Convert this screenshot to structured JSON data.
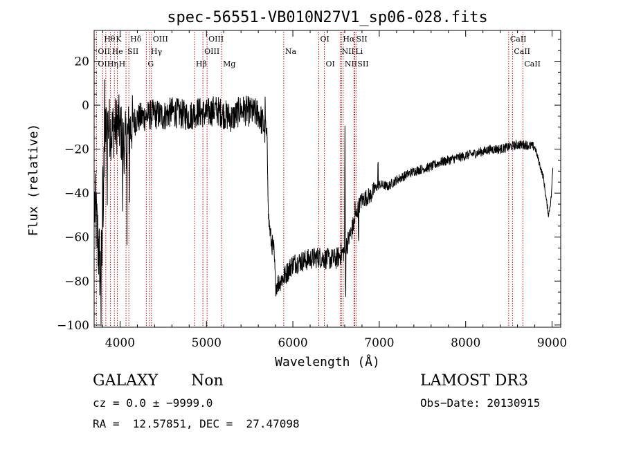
{
  "chart_data": {
    "type": "line",
    "title": "spec-56551-VB010N27V1_sp06-028.fits",
    "xlabel": "Wavelength (Å)",
    "ylabel": "Flux (relative)",
    "xlim": [
      3700,
      9100
    ],
    "ylim": [
      -101,
      34
    ],
    "xticks": [
      4000,
      5000,
      6000,
      7000,
      8000,
      9000
    ],
    "yticks": [
      -100,
      -80,
      -60,
      -40,
      -20,
      0,
      20
    ],
    "grid": false,
    "line_color": "#000000",
    "marker_color": "#cc0000",
    "spectrum_knots": [
      [
        3705,
        -45
      ],
      [
        3740,
        -60
      ],
      [
        3770,
        -75
      ],
      [
        3790,
        -70
      ],
      [
        3810,
        -40
      ],
      [
        3830,
        -12
      ],
      [
        3860,
        -8
      ],
      [
        3900,
        -12
      ],
      [
        3940,
        -10
      ],
      [
        3980,
        -8
      ],
      [
        4050,
        -18
      ],
      [
        4100,
        -12
      ],
      [
        4150,
        -8
      ],
      [
        4200,
        -6
      ],
      [
        4300,
        -5
      ],
      [
        4400,
        -4
      ],
      [
        4500,
        -5
      ],
      [
        4600,
        -3
      ],
      [
        4700,
        -4
      ],
      [
        4800,
        -5
      ],
      [
        4900,
        -3
      ],
      [
        5000,
        -4
      ],
      [
        5100,
        -2
      ],
      [
        5200,
        -4
      ],
      [
        5300,
        -6
      ],
      [
        5400,
        -2
      ],
      [
        5500,
        -3
      ],
      [
        5600,
        -4
      ],
      [
        5650,
        -8
      ],
      [
        5700,
        -15
      ],
      [
        5720,
        -52
      ],
      [
        5750,
        -62
      ],
      [
        5780,
        -66
      ],
      [
        5800,
        -82
      ],
      [
        5850,
        -80
      ],
      [
        5900,
        -78
      ],
      [
        5950,
        -75
      ],
      [
        6000,
        -72
      ],
      [
        6100,
        -71
      ],
      [
        6200,
        -70
      ],
      [
        6300,
        -69
      ],
      [
        6400,
        -70
      ],
      [
        6500,
        -70
      ],
      [
        6600,
        -66
      ],
      [
        6700,
        -55
      ],
      [
        6760,
        -46
      ],
      [
        6800,
        -43
      ],
      [
        6850,
        -42
      ],
      [
        6900,
        -41
      ],
      [
        6950,
        -38
      ],
      [
        7000,
        -36
      ],
      [
        7100,
        -37
      ],
      [
        7200,
        -34
      ],
      [
        7300,
        -32
      ],
      [
        7400,
        -30
      ],
      [
        7500,
        -29
      ],
      [
        7600,
        -28
      ],
      [
        7700,
        -26
      ],
      [
        7800,
        -25
      ],
      [
        7900,
        -24
      ],
      [
        8000,
        -23
      ],
      [
        8100,
        -22
      ],
      [
        8200,
        -21
      ],
      [
        8300,
        -20
      ],
      [
        8400,
        -20
      ],
      [
        8500,
        -19
      ],
      [
        8600,
        -18
      ],
      [
        8700,
        -18
      ],
      [
        8800,
        -19
      ],
      [
        8850,
        -26
      ],
      [
        8900,
        -33
      ],
      [
        8940,
        -45
      ],
      [
        8960,
        -50
      ],
      [
        8990,
        -42
      ],
      [
        9010,
        -28
      ]
    ],
    "line_markers": [
      {
        "label": "OII",
        "x": 3727,
        "row": 2
      },
      {
        "label": "OII",
        "x": 3727,
        "row": 3
      },
      {
        "label": "Hθ",
        "x": 3798,
        "row": 1
      },
      {
        "label": "Hη",
        "x": 3835,
        "row": 3
      },
      {
        "label": "He",
        "x": 3889,
        "row": 2
      },
      {
        "label": "K",
        "x": 3934,
        "row": 1
      },
      {
        "label": "H",
        "x": 3969,
        "row": 3
      },
      {
        "label": "SII",
        "x": 4069,
        "row": 2
      },
      {
        "label": "Hδ",
        "x": 4102,
        "row": 1
      },
      {
        "label": "G",
        "x": 4304,
        "row": 3
      },
      {
        "label": "Hγ",
        "x": 4340,
        "row": 2
      },
      {
        "label": "OIII",
        "x": 4363,
        "row": 1
      },
      {
        "label": "Hβ",
        "x": 4861,
        "row": 3
      },
      {
        "label": "OIII",
        "x": 4959,
        "row": 2
      },
      {
        "label": "OIII",
        "x": 5007,
        "row": 1
      },
      {
        "label": "Mg",
        "x": 5175,
        "row": 3
      },
      {
        "label": "Na",
        "x": 5894,
        "row": 2
      },
      {
        "label": "OI",
        "x": 6300,
        "row": 1
      },
      {
        "label": "OI",
        "x": 6364,
        "row": 3
      },
      {
        "label": "Hα",
        "x": 6563,
        "row": 1
      },
      {
        "label": "NII",
        "x": 6548,
        "row": 2
      },
      {
        "label": "NII",
        "x": 6583,
        "row": 3
      },
      {
        "label": "Li",
        "x": 6708,
        "row": 2
      },
      {
        "label": "SII",
        "x": 6716,
        "row": 1
      },
      {
        "label": "SII",
        "x": 6731,
        "row": 3
      },
      {
        "label": "CaII",
        "x": 8498,
        "row": 1
      },
      {
        "label": "CaII",
        "x": 8542,
        "row": 2
      },
      {
        "label": "CaII",
        "x": 8662,
        "row": 3
      }
    ],
    "marker_line_positions": [
      3727,
      3798,
      3835,
      3889,
      3934,
      3969,
      4069,
      4102,
      4304,
      4340,
      4363,
      4861,
      4959,
      5007,
      5175,
      5894,
      6300,
      6364,
      6548,
      6563,
      6583,
      6708,
      6716,
      6731,
      8498,
      8542,
      8662
    ]
  },
  "info": {
    "class": "GALAXY",
    "subclass": "Non",
    "survey": "LAMOST DR3",
    "cz": "cz = 0.0 ± −9999.0",
    "obs_date": "Obs−Date: 20130915",
    "radec": "RA =  12.57851, DEC =  27.47098"
  }
}
